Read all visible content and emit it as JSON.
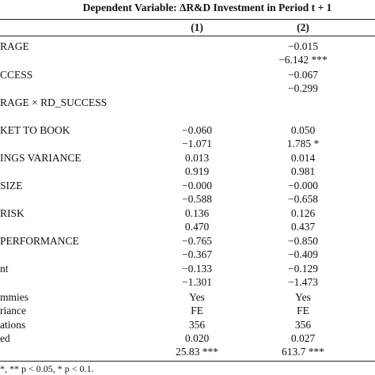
{
  "table": {
    "title": "Dependent Variable: ΔR&D Investment in Period t + 1",
    "columns": [
      "(1)",
      "(2)"
    ],
    "rows": [
      [
        "RAGE",
        null,
        "−0.015"
      ],
      [
        null,
        null,
        "−6.142 ***"
      ],
      [
        "CCESS",
        null,
        "−0.067"
      ],
      [
        null,
        null,
        "−0.299"
      ],
      [
        "RAGE × RD_SUCCESS",
        null,
        null
      ],
      [
        "KET TO BOOK",
        "−0.060",
        "0.050"
      ],
      [
        null,
        "−1.071",
        "1.785 *"
      ],
      [
        "INGS VARIANCE",
        "0.013",
        "0.014"
      ],
      [
        null,
        "0.919",
        "0.981"
      ],
      [
        "SIZE",
        "−0.000",
        "−0.000"
      ],
      [
        null,
        "−0.588",
        "−0.658"
      ],
      [
        "RISK",
        "0.136",
        "0.126"
      ],
      [
        null,
        "0.470",
        "0.437"
      ],
      [
        "PERFORMANCE",
        "−0.765",
        "−0.850"
      ],
      [
        null,
        "−0.367",
        "−0.409"
      ],
      [
        "nt",
        "−0.133",
        "−0.129"
      ],
      [
        null,
        "−1.301",
        "−1.473"
      ],
      [
        "mmies",
        "Yes",
        "Yes"
      ],
      [
        "riance",
        "FE",
        "FE"
      ],
      [
        "ations",
        "356",
        "356"
      ],
      [
        "ed",
        "0.020",
        "0.027"
      ],
      [
        null,
        "25.83 ***",
        "613.7 ***"
      ]
    ],
    "footnote": "*, ** p < 0.05, * p < 0.1."
  }
}
